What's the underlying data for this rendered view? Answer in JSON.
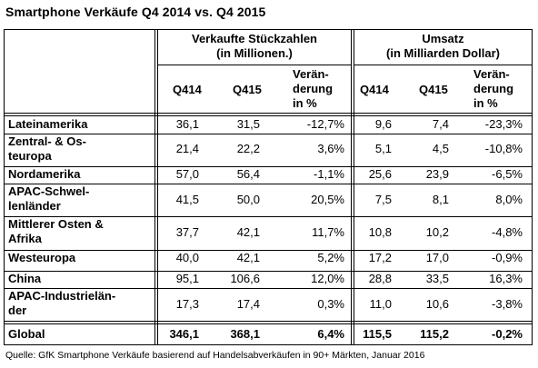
{
  "title": "Smartphone Verkäufe Q4 2014 vs. Q4 2015",
  "groups": {
    "units": [
      "Verkaufte Stückzahlen",
      "(in Millionen.)"
    ],
    "revenue": [
      "Umsatz",
      "(in Milliarden Dollar)"
    ]
  },
  "columns": {
    "q414": "Q414",
    "q415": "Q415",
    "change": [
      "Verän-",
      "derung",
      "in %"
    ]
  },
  "rows": [
    {
      "region": [
        "Lateinamerika"
      ],
      "u14": "36,1",
      "u15": "31,5",
      "uchg": "-12,7%",
      "r14": "9,6",
      "r15": "7,4",
      "rchg": "-23,3%"
    },
    {
      "region": [
        "Zentral- & Os-",
        "teuropa"
      ],
      "u14": "21,4",
      "u15": "22,2",
      "uchg": "3,6%",
      "r14": "5,1",
      "r15": "4,5",
      "rchg": "-10,8%"
    },
    {
      "region": [
        "Nordamerika"
      ],
      "u14": "57,0",
      "u15": "56,4",
      "uchg": "-1,1%",
      "r14": "25,6",
      "r15": "23,9",
      "rchg": "-6,5%"
    },
    {
      "region": [
        "APAC-Schwel-",
        "lenländer"
      ],
      "u14": "41,5",
      "u15": "50,0",
      "uchg": "20,5%",
      "r14": "7,5",
      "r15": "8,1",
      "rchg": "8,0%"
    },
    {
      "region": [
        "Mittlerer Osten &",
        "Afrika"
      ],
      "u14": "37,7",
      "u15": "42,1",
      "uchg": "11,7%",
      "r14": "10,8",
      "r15": "10,2",
      "rchg": "-4,8%"
    },
    {
      "region": [
        "Westeuropa"
      ],
      "u14": "40,0",
      "u15": "42,1",
      "uchg": "5,2%",
      "r14": "17,2",
      "r15": "17,0",
      "rchg": "-0,9%"
    },
    {
      "region": [
        "China"
      ],
      "u14": "95,1",
      "u15": "106,6",
      "uchg": "12,0%",
      "r14": "28,8",
      "r15": "33,5",
      "rchg": "16,3%"
    },
    {
      "region": [
        "APAC-Industrielän-",
        "der"
      ],
      "u14": "17,3",
      "u15": "17,4",
      "uchg": "0,3%",
      "r14": "11,0",
      "r15": "10,6",
      "rchg": "-3,8%"
    }
  ],
  "total": {
    "region": "Global",
    "u14": "346,1",
    "u15": "368,1",
    "uchg": "6,4%",
    "r14": "115,5",
    "r15": "115,2",
    "rchg": "-0,2%"
  },
  "source": "Quelle: GfK Smartphone Verkäufe basierend auf Handelsabverkäufen in 90+ Märkten, Januar 2016"
}
